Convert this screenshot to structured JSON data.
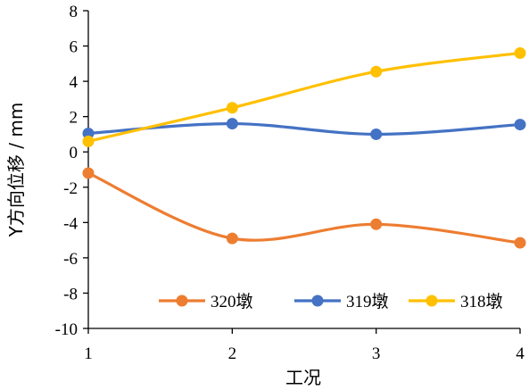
{
  "chart_data": {
    "type": "line",
    "title": "",
    "xlabel": "工况",
    "ylabel": "Y方向位移 / mm",
    "x": [
      1,
      2,
      3,
      4
    ],
    "xlim": [
      1,
      4
    ],
    "ylim": [
      -10,
      8
    ],
    "xticks": [
      "1",
      "2",
      "3",
      "4"
    ],
    "yticks": [
      "8",
      "6",
      "4",
      "2",
      "0",
      "-2",
      "-4",
      "-6",
      "-8",
      "-10"
    ],
    "ytick_values": [
      8,
      6,
      4,
      2,
      0,
      -2,
      -4,
      -6,
      -8,
      -10
    ],
    "smooth": true,
    "grid": false,
    "legend_position": "bottom-right",
    "series": [
      {
        "name": "320墩",
        "color": "#ED7D31",
        "values": [
          -1.2,
          -4.9,
          -4.1,
          -5.15
        ]
      },
      {
        "name": "319墩",
        "color": "#4472C4",
        "values": [
          1.05,
          1.6,
          1.0,
          1.55
        ]
      },
      {
        "name": "318墩",
        "color": "#FFC000",
        "values": [
          0.6,
          2.5,
          4.55,
          5.6
        ]
      }
    ]
  }
}
